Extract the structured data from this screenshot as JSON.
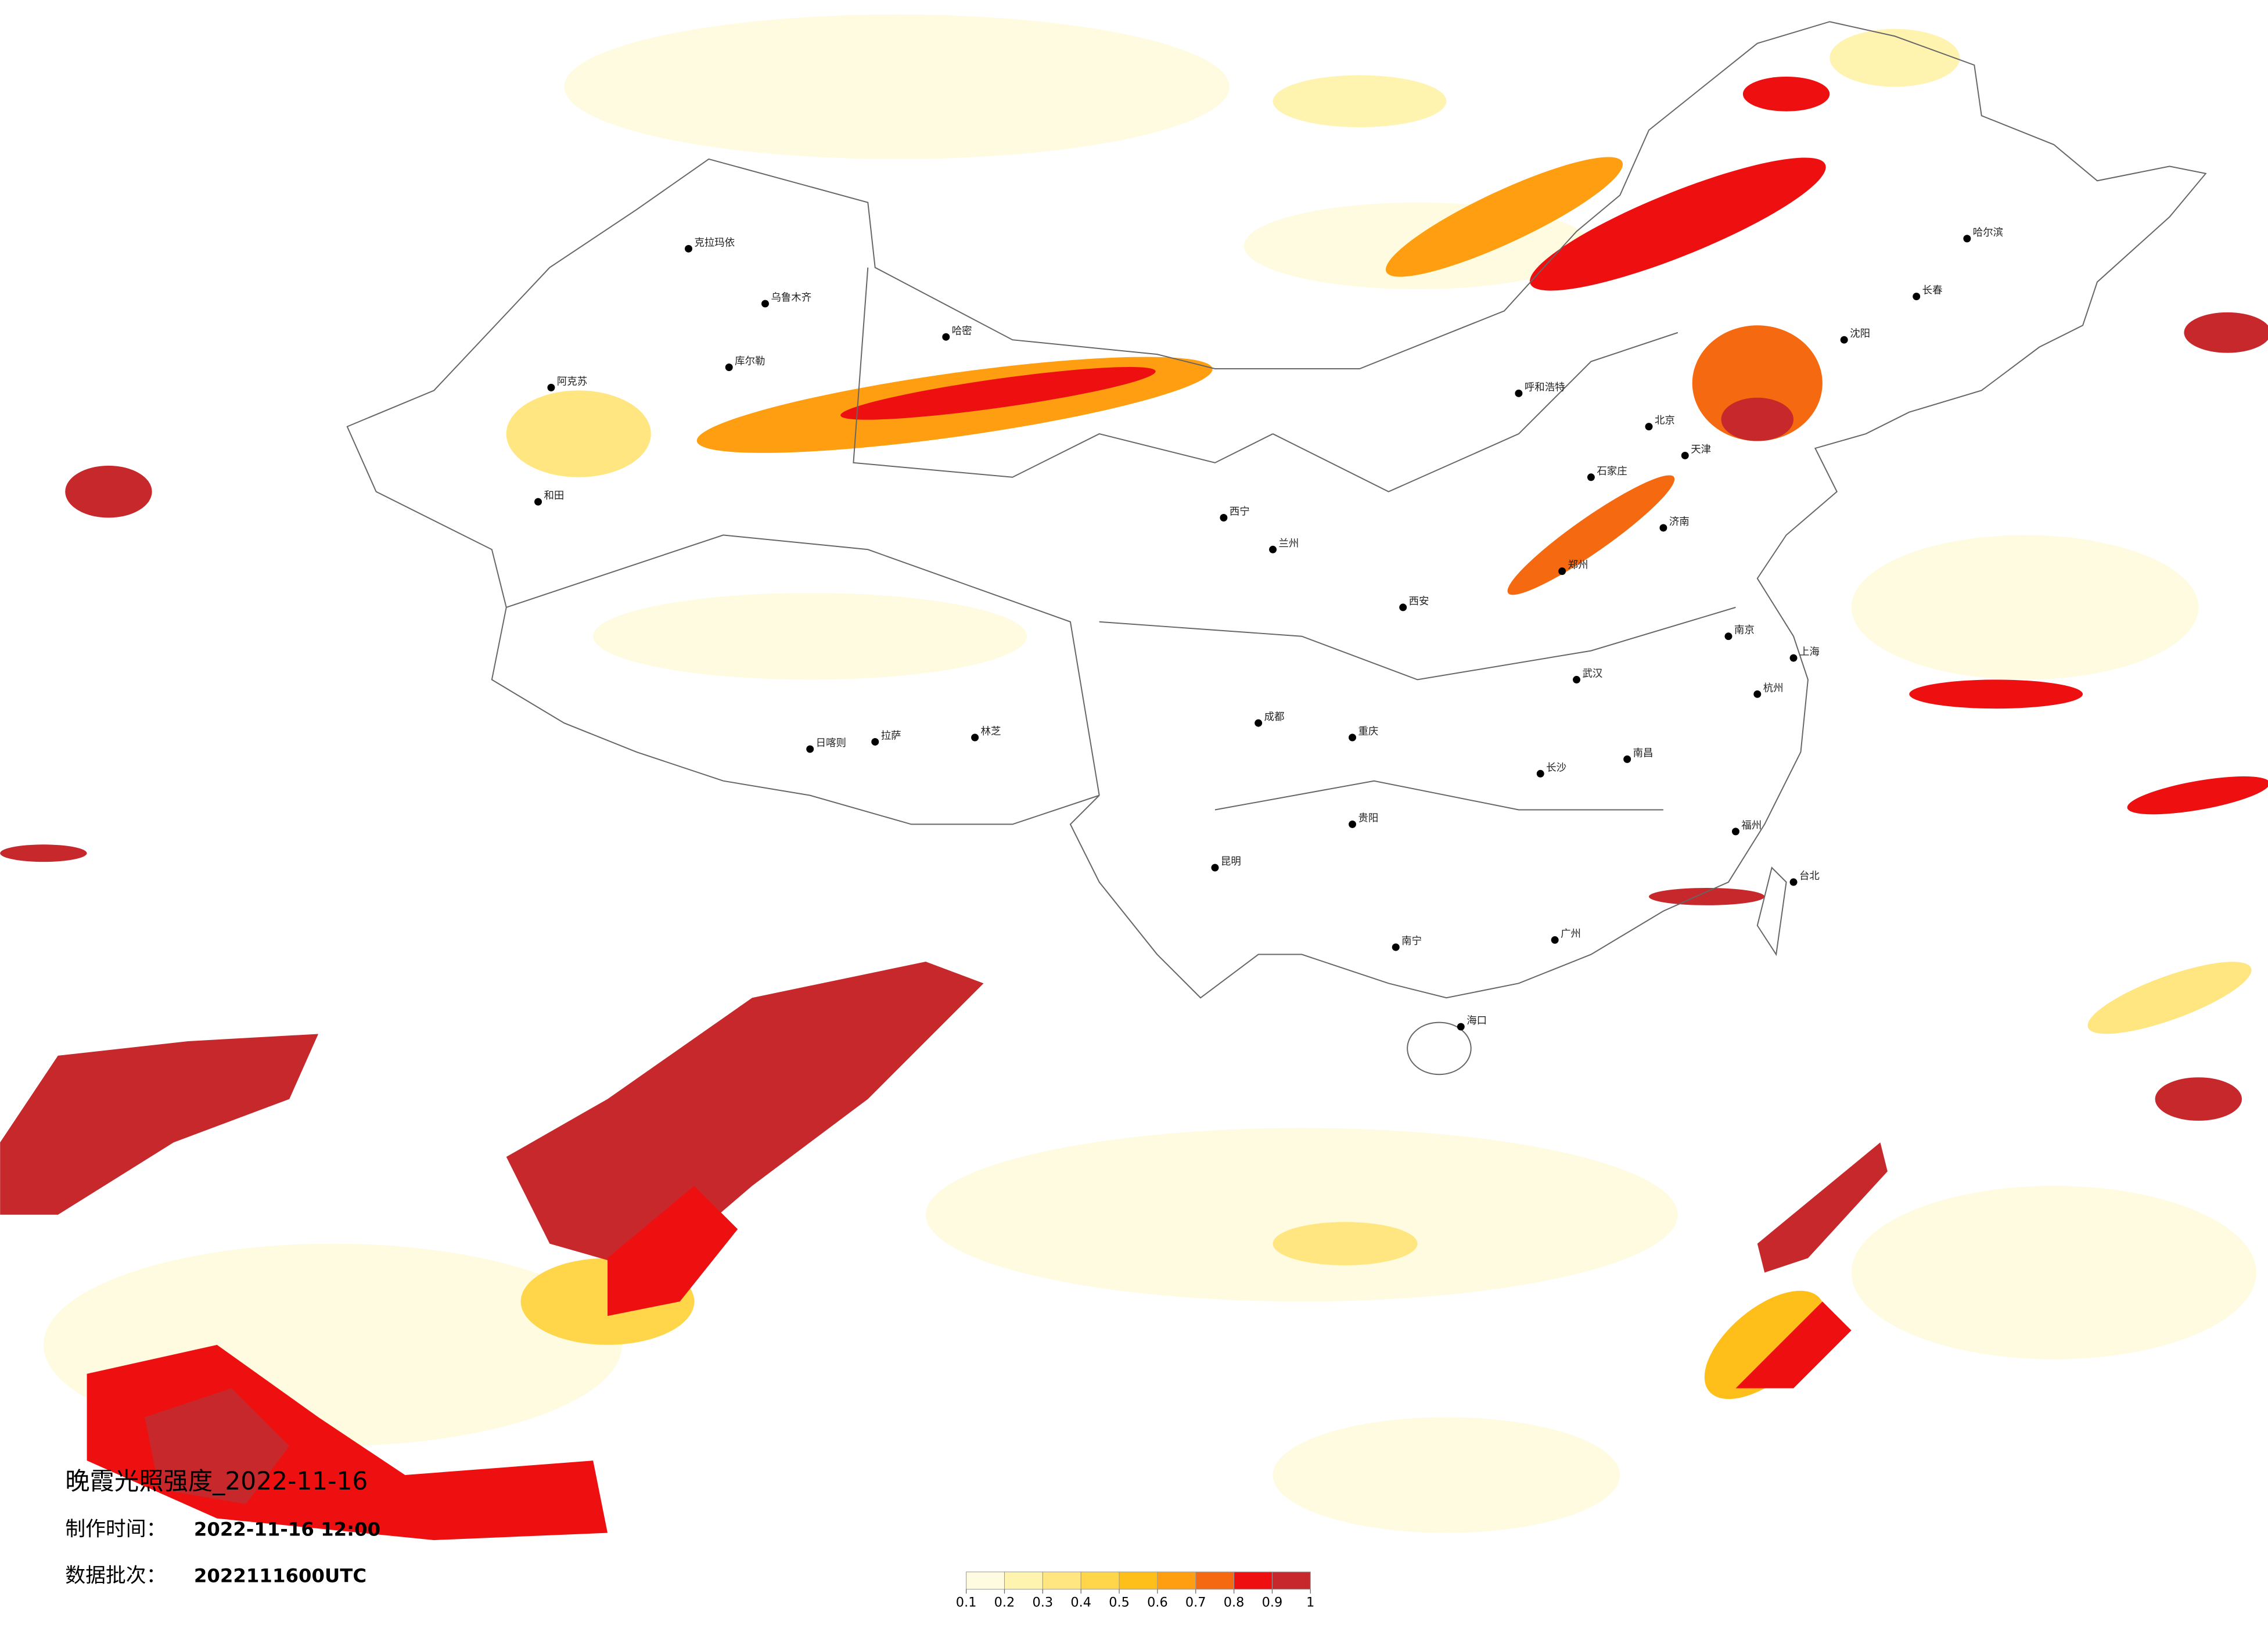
{
  "title": "晚霞光照强度_2022-11-16",
  "info": [
    {
      "label": "制作时间：",
      "value": "2022-11-16 12:00"
    },
    {
      "label": "数据批次：",
      "value": "2022111600UTC"
    }
  ],
  "legend": {
    "colors": [
      "#fffbe0",
      "#fff3b0",
      "#ffe680",
      "#ffd54a",
      "#ffbf1a",
      "#ff9e10",
      "#f56a10",
      "#ee1010",
      "#c6282c"
    ],
    "ticks": [
      0.1,
      0.2,
      0.3,
      0.4,
      0.5,
      0.6,
      0.7,
      0.8,
      0.9,
      1
    ]
  },
  "cities": [
    "克拉玛依",
    "乌鲁木齐",
    "哈密",
    "库尔勒",
    "阿克苏",
    "和田",
    "日喀则",
    "拉萨",
    "林芝",
    "西宁",
    "兰州",
    "呼和浩特",
    "北京",
    "天津",
    "石家庄",
    "济南",
    "郑州",
    "西安",
    "成都",
    "重庆",
    "武汉",
    "南京",
    "上海",
    "杭州",
    "长沙",
    "南昌",
    "福州",
    "广州",
    "南宁",
    "昆明",
    "贵阳",
    "海口",
    "沈阳",
    "长春",
    "哈尔滨",
    "台北"
  ]
}
